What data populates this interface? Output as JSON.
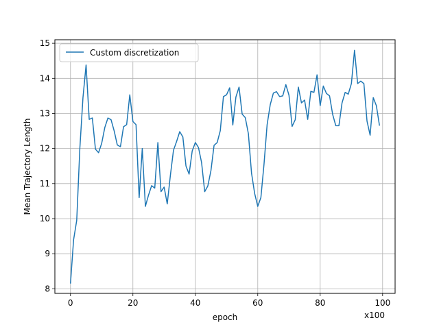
{
  "chart_data": {
    "type": "line",
    "title": "",
    "xlabel": "epoch",
    "ylabel": "Mean Trajectory Length",
    "x_offset_label": "x100",
    "xlim": [
      -5,
      104
    ],
    "ylim": [
      7.87,
      15.1
    ],
    "xticks": [
      0,
      20,
      40,
      60,
      80,
      100
    ],
    "yticks": [
      8,
      9,
      10,
      11,
      12,
      13,
      14,
      15
    ],
    "grid": true,
    "legend_position": "upper-left",
    "colors": {
      "series": "#1f77b4",
      "grid": "#b0b0b0",
      "axes": "#000000"
    },
    "series": [
      {
        "name": "Custom discretization",
        "x": [
          0,
          1,
          2,
          3,
          4,
          5,
          6,
          7,
          8,
          9,
          10,
          11,
          12,
          13,
          14,
          15,
          16,
          17,
          18,
          19,
          20,
          21,
          22,
          23,
          24,
          25,
          26,
          27,
          28,
          29,
          30,
          31,
          32,
          33,
          34,
          35,
          36,
          37,
          38,
          39,
          40,
          41,
          42,
          43,
          44,
          45,
          46,
          47,
          48,
          49,
          50,
          51,
          52,
          53,
          54,
          55,
          56,
          57,
          58,
          59,
          60,
          61,
          62,
          63,
          64,
          65,
          66,
          67,
          68,
          69,
          70,
          71,
          72,
          73,
          74,
          75,
          76,
          77,
          78,
          79,
          80,
          81,
          82,
          83,
          84,
          85,
          86,
          87,
          88,
          89,
          90,
          91,
          92,
          93,
          94,
          95,
          96,
          97,
          98,
          99
        ],
        "values": [
          8.15,
          9.4,
          9.95,
          12.0,
          13.45,
          14.38,
          12.83,
          12.87,
          11.98,
          11.88,
          12.15,
          12.6,
          12.87,
          12.82,
          12.5,
          12.1,
          12.05,
          12.62,
          12.68,
          13.53,
          12.77,
          12.68,
          10.6,
          12.0,
          10.35,
          10.67,
          10.94,
          10.87,
          12.17,
          10.77,
          10.9,
          10.42,
          11.23,
          11.95,
          12.2,
          12.48,
          12.33,
          11.5,
          11.27,
          11.93,
          12.17,
          12.03,
          11.6,
          10.77,
          10.93,
          11.37,
          12.09,
          12.17,
          12.51,
          13.48,
          13.53,
          13.73,
          12.67,
          13.47,
          13.75,
          12.98,
          12.88,
          12.42,
          11.3,
          10.72,
          10.35,
          10.6,
          11.55,
          12.68,
          13.25,
          13.58,
          13.62,
          13.48,
          13.5,
          13.82,
          13.52,
          12.63,
          12.82,
          13.75,
          13.3,
          13.38,
          12.83,
          13.63,
          13.6,
          14.1,
          13.22,
          13.78,
          13.57,
          13.5,
          12.97,
          12.65,
          12.65,
          13.3,
          13.6,
          13.55,
          13.85,
          14.8,
          13.85,
          13.92,
          13.85,
          12.78,
          12.38,
          13.45,
          13.22,
          12.65
        ]
      }
    ]
  }
}
